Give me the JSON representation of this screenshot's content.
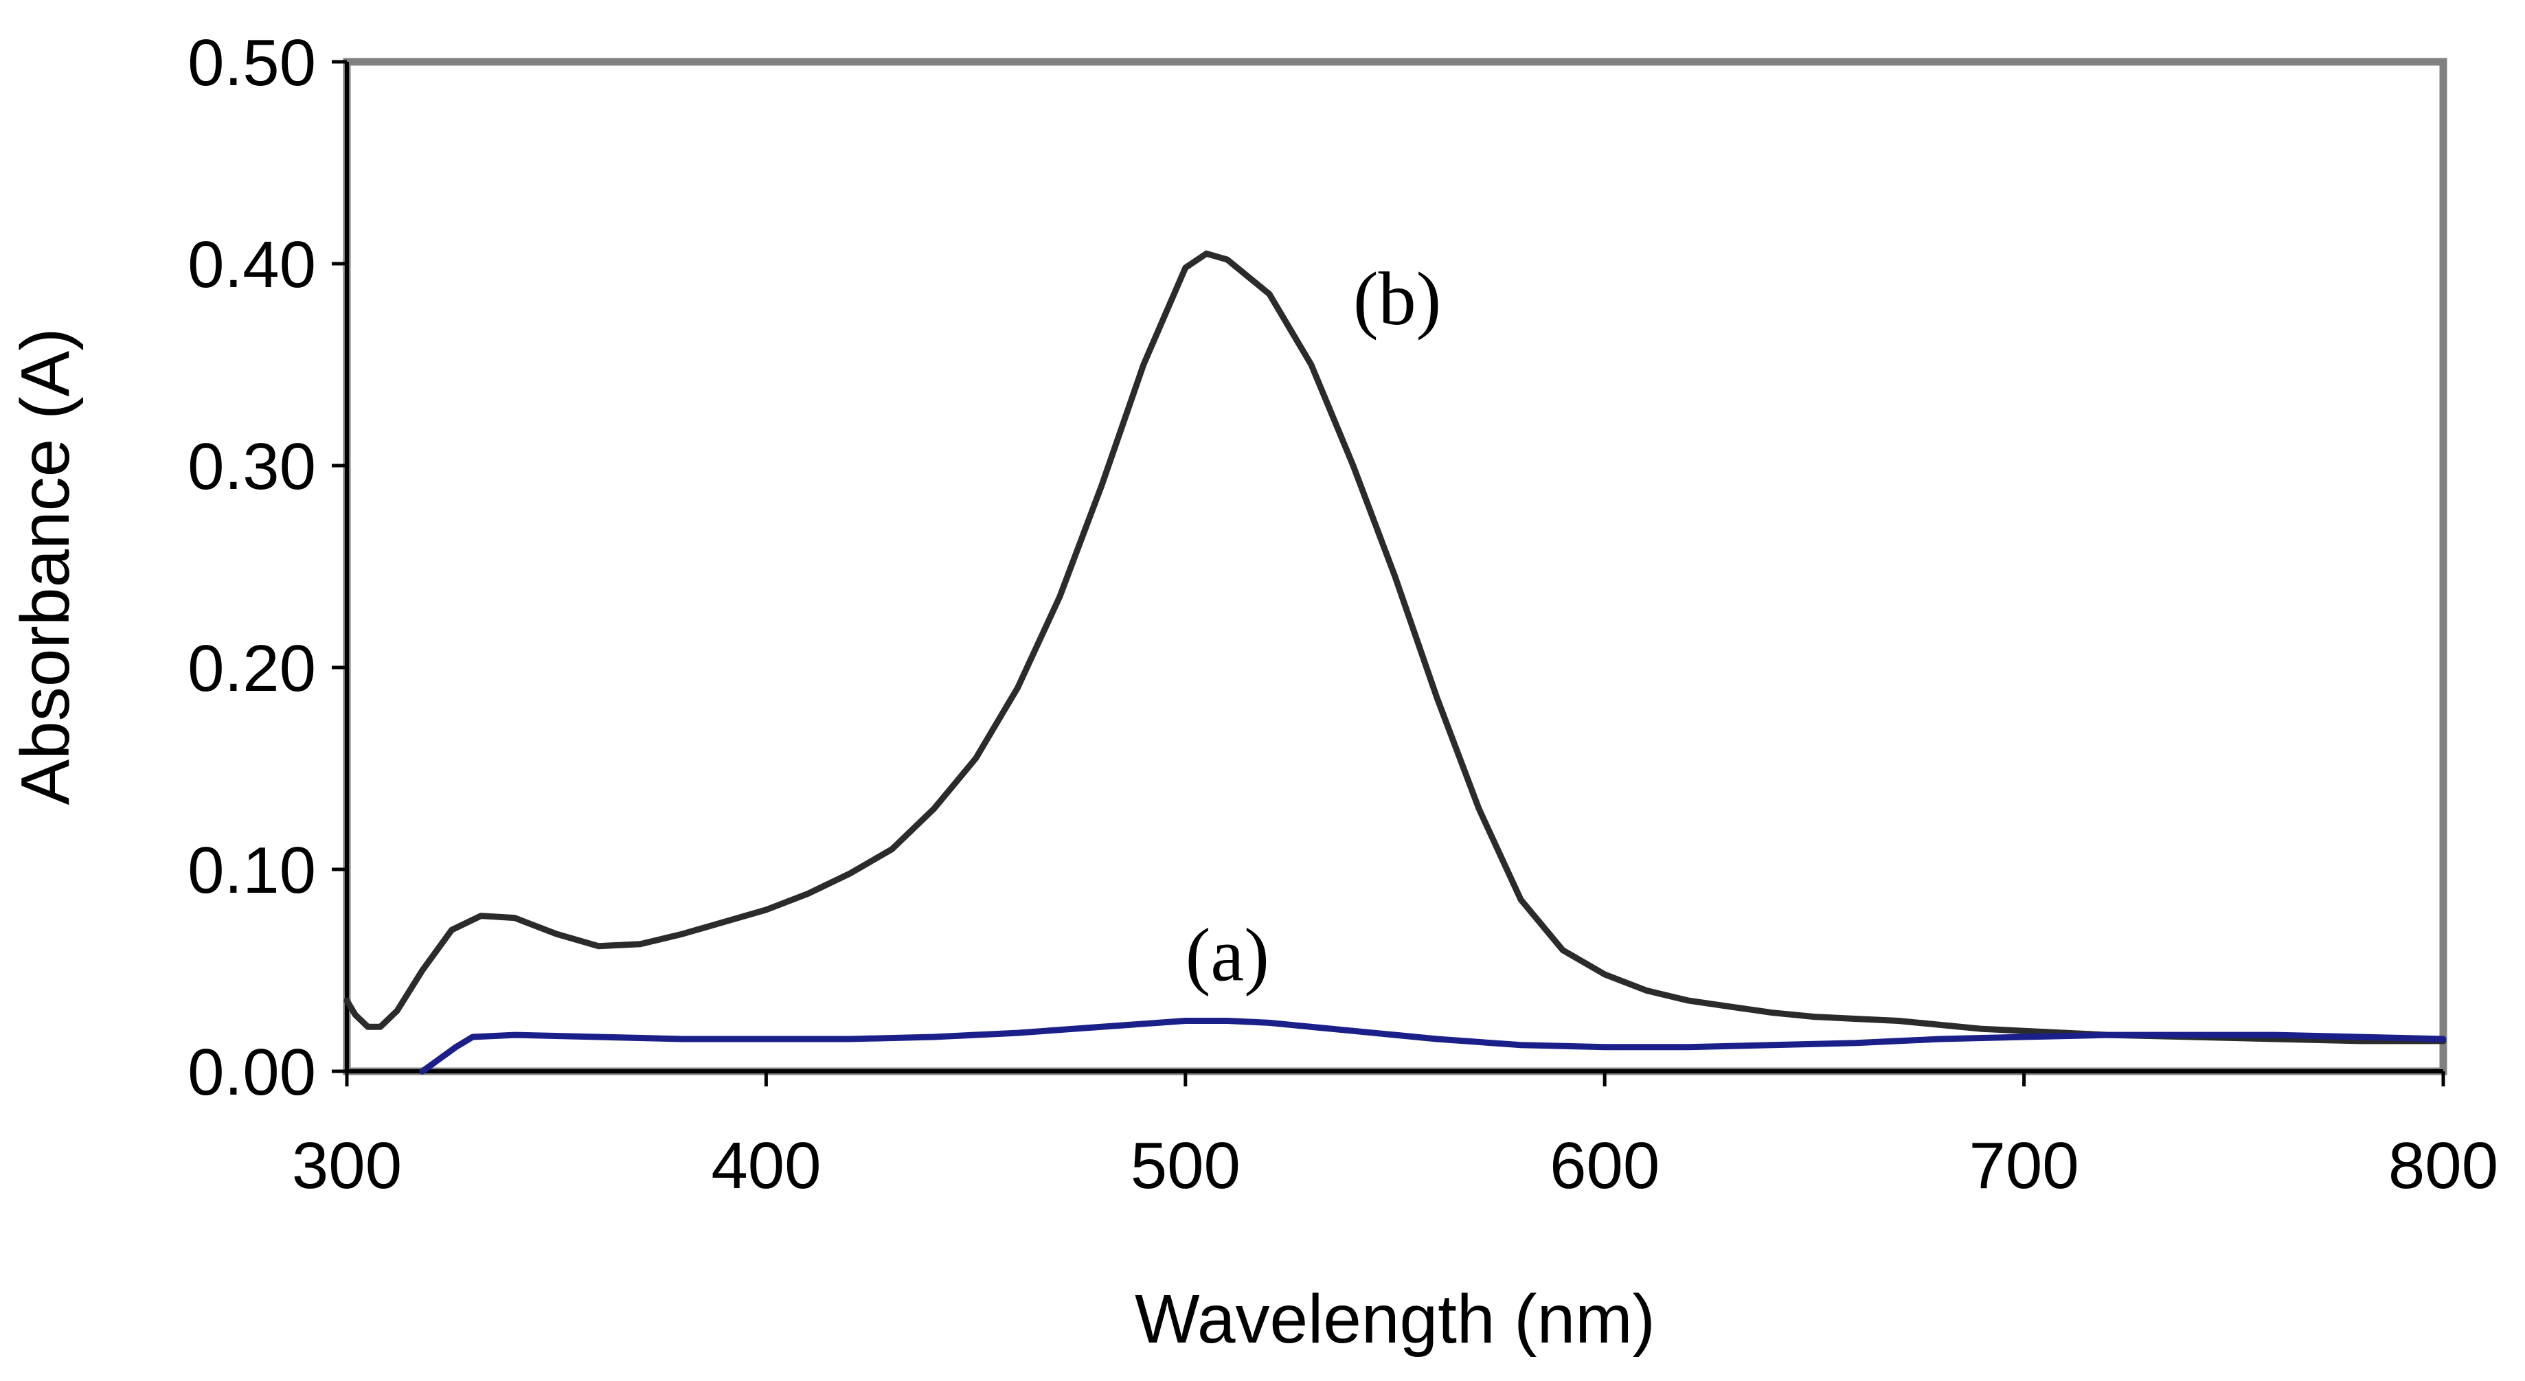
{
  "chart_data": {
    "type": "line",
    "title": "",
    "xlabel": "Wavelength (nm)",
    "ylabel": "Absorbance (A)",
    "xlim": [
      300,
      800
    ],
    "ylim": [
      0,
      0.5
    ],
    "x_ticks": [
      300,
      400,
      500,
      600,
      700,
      800
    ],
    "x_tick_labels": [
      "300",
      "400",
      "500",
      "600",
      "700",
      "800"
    ],
    "y_ticks": [
      0,
      0.1,
      0.2,
      0.3,
      0.4,
      0.5
    ],
    "y_tick_labels": [
      "0.00",
      "0.10",
      "0.20",
      "0.30",
      "0.40",
      "0.50"
    ],
    "grid": false,
    "legend": "none",
    "series": [
      {
        "name": "(b)",
        "color": "#2b2b2b",
        "label_at": [
          540,
          0.37
        ],
        "points": [
          [
            300,
            0.035
          ],
          [
            302,
            0.028
          ],
          [
            305,
            0.022
          ],
          [
            308,
            0.022
          ],
          [
            312,
            0.03
          ],
          [
            318,
            0.05
          ],
          [
            325,
            0.07
          ],
          [
            332,
            0.077
          ],
          [
            340,
            0.076
          ],
          [
            350,
            0.068
          ],
          [
            360,
            0.062
          ],
          [
            370,
            0.063
          ],
          [
            380,
            0.068
          ],
          [
            390,
            0.074
          ],
          [
            400,
            0.08
          ],
          [
            410,
            0.088
          ],
          [
            420,
            0.098
          ],
          [
            430,
            0.11
          ],
          [
            440,
            0.13
          ],
          [
            450,
            0.155
          ],
          [
            460,
            0.19
          ],
          [
            470,
            0.235
          ],
          [
            480,
            0.29
          ],
          [
            490,
            0.35
          ],
          [
            500,
            0.398
          ],
          [
            505,
            0.405
          ],
          [
            510,
            0.402
          ],
          [
            520,
            0.385
          ],
          [
            530,
            0.35
          ],
          [
            540,
            0.3
          ],
          [
            550,
            0.245
          ],
          [
            560,
            0.185
          ],
          [
            570,
            0.13
          ],
          [
            580,
            0.085
          ],
          [
            590,
            0.06
          ],
          [
            600,
            0.048
          ],
          [
            610,
            0.04
          ],
          [
            620,
            0.035
          ],
          [
            630,
            0.032
          ],
          [
            640,
            0.029
          ],
          [
            650,
            0.027
          ],
          [
            660,
            0.026
          ],
          [
            670,
            0.025
          ],
          [
            680,
            0.023
          ],
          [
            690,
            0.021
          ],
          [
            700,
            0.02
          ],
          [
            720,
            0.018
          ],
          [
            740,
            0.017
          ],
          [
            760,
            0.016
          ],
          [
            780,
            0.015
          ],
          [
            800,
            0.015
          ]
        ]
      },
      {
        "name": "(a)",
        "color": "#1a1f8a",
        "label_at": [
          500,
          0.045
        ],
        "points": [
          [
            318,
            0.0
          ],
          [
            322,
            0.006
          ],
          [
            326,
            0.012
          ],
          [
            330,
            0.017
          ],
          [
            340,
            0.018
          ],
          [
            360,
            0.017
          ],
          [
            380,
            0.016
          ],
          [
            400,
            0.016
          ],
          [
            420,
            0.016
          ],
          [
            440,
            0.017
          ],
          [
            460,
            0.019
          ],
          [
            480,
            0.022
          ],
          [
            500,
            0.025
          ],
          [
            510,
            0.025
          ],
          [
            520,
            0.024
          ],
          [
            540,
            0.02
          ],
          [
            560,
            0.016
          ],
          [
            580,
            0.013
          ],
          [
            600,
            0.012
          ],
          [
            620,
            0.012
          ],
          [
            640,
            0.013
          ],
          [
            660,
            0.014
          ],
          [
            680,
            0.016
          ],
          [
            700,
            0.017
          ],
          [
            720,
            0.018
          ],
          [
            740,
            0.018
          ],
          [
            760,
            0.018
          ],
          [
            780,
            0.017
          ],
          [
            800,
            0.016
          ]
        ]
      }
    ]
  }
}
